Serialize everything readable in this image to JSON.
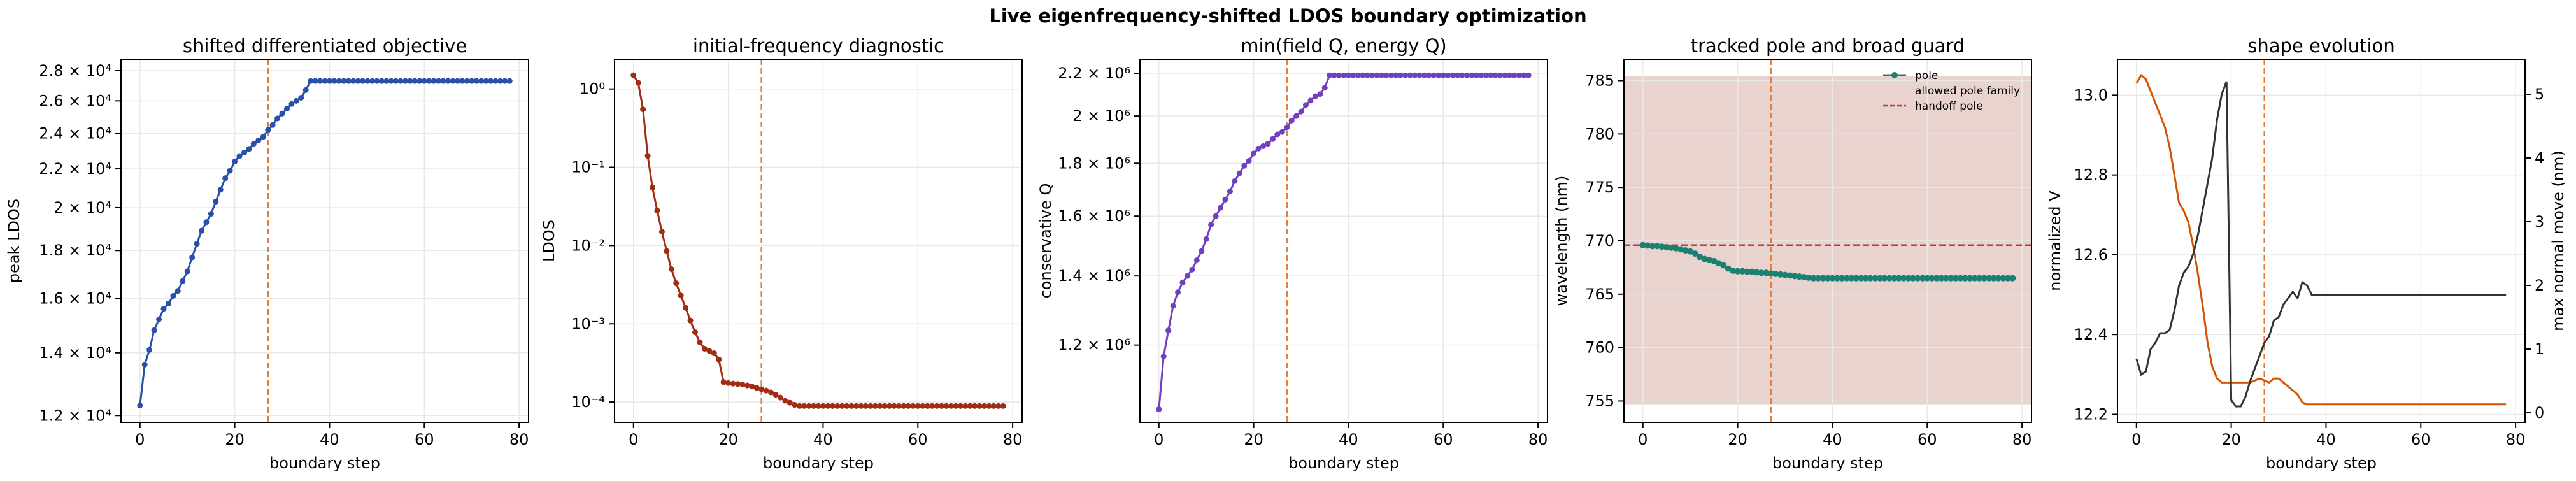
{
  "suptitle": "Live eigenfrequency-shifted LDOS boundary optimization",
  "colors": {
    "panel1": "#2850a8",
    "panel2": "#a02c14",
    "panel3": "#7040c0",
    "panel4": "#1a8070",
    "panel4_band": "#e9d3cf",
    "handoff_line": "#c0392b",
    "vline": "#e07b39",
    "shape_v": "#333333",
    "shape_move": "#d35400",
    "grid": "#e8e8e8"
  },
  "chart_data": [
    {
      "type": "line",
      "title": "shifted differentiated objective",
      "xlabel": "boundary step",
      "ylabel": "peak LDOS",
      "yscale": "log",
      "xlim": [
        -4,
        82
      ],
      "ylim": [
        11800,
        28800
      ],
      "xticks": [
        0,
        20,
        40,
        60,
        80
      ],
      "xtick_labels": [
        "0",
        "20",
        "40",
        "60",
        "80"
      ],
      "yticks": [
        12000,
        14000,
        16000,
        18000,
        20000,
        22000,
        24000,
        26000,
        28000
      ],
      "ytick_labels": [
        "1.2 × 10⁴",
        "1.4 × 10⁴",
        "1.6 × 10⁴",
        "1.8 × 10⁴",
        "2 × 10⁴",
        "2.2 × 10⁴",
        "2.4 × 10⁴",
        "2.6 × 10⁴",
        "2.8 × 10⁴"
      ],
      "vline": 27,
      "grid": true,
      "series": [
        {
          "x": [
            0,
            1,
            2,
            3,
            4,
            5,
            6,
            7,
            8,
            9,
            10,
            11,
            12,
            13,
            14,
            15,
            16,
            17,
            18,
            19,
            20,
            21,
            22,
            23,
            24,
            25,
            26,
            27,
            28,
            29,
            30,
            31,
            32,
            33,
            34,
            35,
            36,
            37,
            38,
            39,
            40,
            41,
            42,
            43,
            44,
            45,
            46,
            47,
            48,
            49,
            50,
            51,
            52,
            53,
            54,
            55,
            56,
            57,
            58,
            59,
            60,
            61,
            62,
            63,
            64,
            65,
            66,
            67,
            68,
            69,
            70,
            71,
            72,
            73,
            74,
            75,
            76,
            77,
            78
          ],
          "y": [
            12300,
            13600,
            14100,
            14800,
            15200,
            15600,
            15800,
            16100,
            16300,
            16700,
            17100,
            17700,
            18300,
            18900,
            19300,
            19700,
            20300,
            20900,
            21500,
            21900,
            22400,
            22700,
            22900,
            23100,
            23400,
            23600,
            23800,
            24200,
            24500,
            24900,
            25200,
            25500,
            25800,
            26000,
            26200,
            26700,
            27300,
            27300,
            27300,
            27300,
            27300,
            27300,
            27300,
            27300,
            27300,
            27300,
            27300,
            27300,
            27300,
            27300,
            27300,
            27300,
            27300,
            27300,
            27300,
            27300,
            27300,
            27300,
            27300,
            27300,
            27300,
            27300,
            27300,
            27300,
            27300,
            27300,
            27300,
            27300,
            27300,
            27300,
            27300,
            27300,
            27300,
            27300,
            27300,
            27300,
            27300,
            27300,
            27300
          ]
        }
      ]
    },
    {
      "type": "line",
      "title": "initial-frequency diagnostic",
      "xlabel": "boundary step",
      "ylabel": "LDOS",
      "yscale": "log",
      "xlim": [
        -4,
        82
      ],
      "ylim": [
        5.5e-05,
        2.4
      ],
      "xticks": [
        0,
        20,
        40,
        60,
        80
      ],
      "xtick_labels": [
        "0",
        "20",
        "40",
        "60",
        "80"
      ],
      "yticks": [
        0.0001,
        0.001,
        0.01,
        0.1,
        1
      ],
      "ytick_labels": [
        "10⁻⁴",
        "10⁻³",
        "10⁻²",
        "10⁻¹",
        "10⁰"
      ],
      "vline": 27,
      "grid": true,
      "series": [
        {
          "x": [
            0,
            1,
            2,
            3,
            4,
            5,
            6,
            7,
            8,
            9,
            10,
            11,
            12,
            13,
            14,
            15,
            16,
            17,
            18,
            19,
            20,
            21,
            22,
            23,
            24,
            25,
            26,
            27,
            28,
            29,
            30,
            31,
            32,
            33,
            34,
            35,
            36,
            37,
            38,
            39,
            40,
            41,
            42,
            43,
            44,
            45,
            46,
            47,
            48,
            49,
            50,
            51,
            52,
            53,
            54,
            55,
            56,
            57,
            58,
            59,
            60,
            61,
            62,
            63,
            64,
            65,
            66,
            67,
            68,
            69,
            70,
            71,
            72,
            73,
            74,
            75,
            76,
            77,
            78
          ],
          "y": [
            1.5,
            1.2,
            0.55,
            0.14,
            0.055,
            0.028,
            0.015,
            0.0085,
            0.005,
            0.0033,
            0.0023,
            0.0016,
            0.0011,
            0.00078,
            0.00058,
            0.00048,
            0.00045,
            0.00042,
            0.00035,
            0.00018,
            0.000175,
            0.000172,
            0.00017,
            0.000168,
            0.000163,
            0.000158,
            0.000152,
            0.000146,
            0.00014,
            0.000133,
            0.000124,
            0.000114,
            0.000104,
            9.8e-05,
            9.2e-05,
            8.9e-05,
            8.9e-05,
            8.9e-05,
            8.9e-05,
            8.9e-05,
            8.9e-05,
            8.9e-05,
            8.9e-05,
            8.9e-05,
            8.9e-05,
            8.9e-05,
            8.9e-05,
            8.9e-05,
            8.9e-05,
            8.9e-05,
            8.9e-05,
            8.9e-05,
            8.9e-05,
            8.9e-05,
            8.9e-05,
            8.9e-05,
            8.9e-05,
            8.9e-05,
            8.9e-05,
            8.9e-05,
            8.9e-05,
            8.9e-05,
            8.9e-05,
            8.9e-05,
            8.9e-05,
            8.9e-05,
            8.9e-05,
            8.9e-05,
            8.9e-05,
            8.9e-05,
            8.9e-05,
            8.9e-05,
            8.9e-05,
            8.9e-05,
            8.9e-05,
            8.9e-05,
            8.9e-05,
            8.9e-05,
            8.9e-05
          ]
        }
      ]
    },
    {
      "type": "line",
      "title": "min(field Q, energy Q)",
      "xlabel": "boundary step",
      "ylabel": "conservative Q",
      "yscale": "log",
      "xlim": [
        -4,
        82
      ],
      "ylim": [
        1010000,
        2270000
      ],
      "xticks": [
        0,
        20,
        40,
        60,
        80
      ],
      "xtick_labels": [
        "0",
        "20",
        "40",
        "60",
        "80"
      ],
      "yticks": [
        1200000,
        1400000,
        1600000,
        1800000,
        2000000,
        2200000
      ],
      "ytick_labels": [
        "1.2 × 10⁶",
        "1.4 × 10⁶",
        "1.6 × 10⁶",
        "1.8 × 10⁶",
        "2 × 10⁶",
        "2.2 × 10⁶"
      ],
      "vline": 27,
      "grid": true,
      "series": [
        {
          "x": [
            0,
            1,
            2,
            3,
            4,
            5,
            6,
            7,
            8,
            9,
            10,
            11,
            12,
            13,
            14,
            15,
            16,
            17,
            18,
            19,
            20,
            21,
            22,
            23,
            24,
            25,
            26,
            27,
            28,
            29,
            30,
            31,
            32,
            33,
            34,
            35,
            36,
            37,
            38,
            39,
            40,
            41,
            42,
            43,
            44,
            45,
            46,
            47,
            48,
            49,
            50,
            51,
            52,
            53,
            54,
            55,
            56,
            57,
            58,
            59,
            60,
            61,
            62,
            63,
            64,
            65,
            66,
            67,
            68,
            69,
            70,
            71,
            72,
            73,
            74,
            75,
            76,
            77,
            78
          ],
          "y": [
            1040000,
            1170000,
            1240000,
            1310000,
            1350000,
            1380000,
            1400000,
            1420000,
            1450000,
            1480000,
            1520000,
            1570000,
            1600000,
            1630000,
            1660000,
            1690000,
            1730000,
            1760000,
            1790000,
            1810000,
            1840000,
            1860000,
            1870000,
            1880000,
            1900000,
            1920000,
            1930000,
            1950000,
            1980000,
            2000000,
            2020000,
            2050000,
            2070000,
            2090000,
            2100000,
            2130000,
            2190000,
            2190000,
            2190000,
            2190000,
            2190000,
            2190000,
            2190000,
            2190000,
            2190000,
            2190000,
            2190000,
            2190000,
            2190000,
            2190000,
            2190000,
            2190000,
            2190000,
            2190000,
            2190000,
            2190000,
            2190000,
            2190000,
            2190000,
            2190000,
            2190000,
            2190000,
            2190000,
            2190000,
            2190000,
            2190000,
            2190000,
            2190000,
            2190000,
            2190000,
            2190000,
            2190000,
            2190000,
            2190000,
            2190000,
            2190000,
            2190000,
            2190000,
            2190000
          ]
        }
      ]
    },
    {
      "type": "line",
      "title": "tracked pole and broad guard",
      "xlabel": "boundary step",
      "ylabel": "wavelength (nm)",
      "yscale": "linear",
      "xlim": [
        -4,
        82
      ],
      "ylim": [
        753,
        787
      ],
      "xticks": [
        0,
        20,
        40,
        60,
        80
      ],
      "xtick_labels": [
        "0",
        "20",
        "40",
        "60",
        "80"
      ],
      "yticks": [
        755,
        760,
        765,
        770,
        775,
        780,
        785
      ],
      "ytick_labels": [
        "755",
        "760",
        "765",
        "770",
        "775",
        "780",
        "785"
      ],
      "vline": 27,
      "band": [
        754.7,
        785.4
      ],
      "hline": 769.6,
      "grid": true,
      "legend": {
        "placement": "top-right",
        "entries": [
          "pole",
          "allowed pole family",
          "handoff pole"
        ]
      },
      "series": [
        {
          "name": "pole",
          "x": [
            0,
            1,
            2,
            3,
            4,
            5,
            6,
            7,
            8,
            9,
            10,
            11,
            12,
            13,
            14,
            15,
            16,
            17,
            18,
            19,
            20,
            21,
            22,
            23,
            24,
            25,
            26,
            27,
            28,
            29,
            30,
            31,
            32,
            33,
            34,
            35,
            36,
            37,
            38,
            39,
            40,
            41,
            42,
            43,
            44,
            45,
            46,
            47,
            48,
            49,
            50,
            51,
            52,
            53,
            54,
            55,
            56,
            57,
            58,
            59,
            60,
            61,
            62,
            63,
            64,
            65,
            66,
            67,
            68,
            69,
            70,
            71,
            72,
            73,
            74,
            75,
            76,
            77,
            78
          ],
          "y": [
            769.6,
            769.55,
            769.5,
            769.5,
            769.45,
            769.4,
            769.35,
            769.3,
            769.2,
            769.1,
            769.0,
            768.8,
            768.5,
            768.3,
            768.2,
            768.1,
            767.9,
            767.7,
            767.4,
            767.2,
            767.15,
            767.15,
            767.1,
            767.1,
            767.05,
            767.0,
            767.0,
            766.95,
            766.9,
            766.85,
            766.8,
            766.75,
            766.7,
            766.65,
            766.6,
            766.55,
            766.5,
            766.5,
            766.5,
            766.5,
            766.5,
            766.5,
            766.5,
            766.5,
            766.5,
            766.5,
            766.5,
            766.5,
            766.5,
            766.5,
            766.5,
            766.5,
            766.5,
            766.5,
            766.5,
            766.5,
            766.5,
            766.5,
            766.5,
            766.5,
            766.5,
            766.5,
            766.5,
            766.5,
            766.5,
            766.5,
            766.5,
            766.5,
            766.5,
            766.5,
            766.5,
            766.5,
            766.5,
            766.5,
            766.5,
            766.5,
            766.5,
            766.5,
            766.5
          ]
        }
      ]
    },
    {
      "type": "line",
      "title": "shape evolution",
      "xlabel": "boundary step",
      "ylabel": "normalized V",
      "ylabel_right": "max normal move (nm)",
      "yscale": "linear",
      "xlim": [
        -4,
        82
      ],
      "ylim": [
        12.18,
        13.09
      ],
      "ylim_right": [
        -0.15,
        5.55
      ],
      "xticks": [
        0,
        20,
        40,
        60,
        80
      ],
      "xtick_labels": [
        "0",
        "20",
        "40",
        "60",
        "80"
      ],
      "yticks": [
        12.2,
        12.4,
        12.6,
        12.8,
        13.0
      ],
      "ytick_labels": [
        "12.2",
        "12.4",
        "12.6",
        "12.8",
        "13.0"
      ],
      "yticks_right": [
        0,
        1,
        2,
        3,
        4,
        5
      ],
      "ytick_labels_right": [
        "0",
        "1",
        "2",
        "3",
        "4",
        "5"
      ],
      "vline": 27,
      "grid": true,
      "series": [
        {
          "axis": "left",
          "x": [
            0,
            1,
            2,
            3,
            4,
            5,
            6,
            7,
            8,
            9,
            10,
            11,
            12,
            13,
            14,
            15,
            16,
            17,
            18,
            19,
            20,
            21,
            22,
            23,
            24,
            25,
            26,
            27,
            28,
            29,
            30,
            31,
            32,
            33,
            34,
            35,
            36,
            37,
            78
          ],
          "y": [
            13.03,
            13.05,
            13.04,
            13.01,
            12.98,
            12.95,
            12.92,
            12.87,
            12.8,
            12.73,
            12.71,
            12.68,
            12.62,
            12.55,
            12.47,
            12.38,
            12.32,
            12.29,
            12.28,
            12.28,
            12.28,
            12.28,
            12.28,
            12.28,
            12.28,
            12.285,
            12.29,
            12.285,
            12.28,
            12.29,
            12.29,
            12.28,
            12.27,
            12.26,
            12.25,
            12.23,
            12.225,
            12.225,
            12.225
          ]
        },
        {
          "axis": "right",
          "x": [
            0,
            1,
            2,
            3,
            4,
            5,
            6,
            7,
            8,
            9,
            10,
            11,
            12,
            13,
            14,
            15,
            16,
            17,
            18,
            19,
            20,
            21,
            22,
            23,
            24,
            25,
            26,
            27,
            28,
            29,
            30,
            31,
            32,
            33,
            34,
            35,
            36,
            37,
            78
          ],
          "y": [
            0.85,
            0.6,
            0.65,
            1.0,
            1.1,
            1.25,
            1.25,
            1.3,
            1.6,
            2.0,
            2.2,
            2.3,
            2.5,
            2.8,
            3.2,
            3.6,
            4.0,
            4.6,
            5.0,
            5.2,
            0.2,
            0.1,
            0.1,
            0.25,
            0.5,
            0.7,
            0.9,
            1.1,
            1.2,
            1.45,
            1.5,
            1.7,
            1.8,
            1.9,
            1.8,
            2.05,
            2.0,
            1.85,
            1.85
          ]
        }
      ]
    }
  ]
}
